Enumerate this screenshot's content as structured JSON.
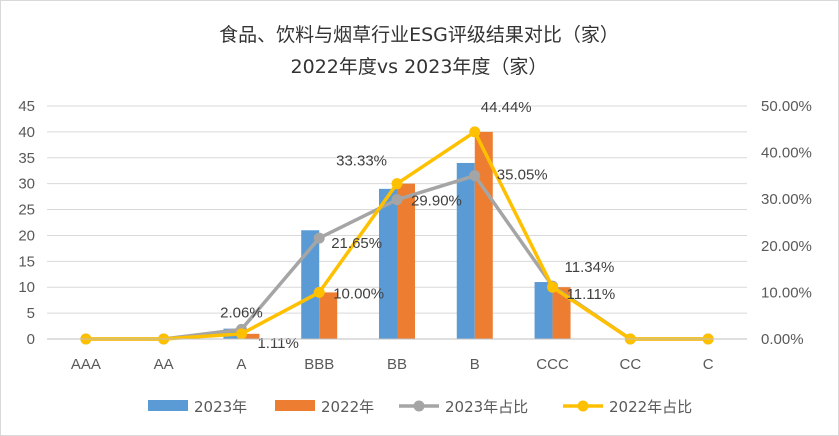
{
  "chart_data": {
    "type": "bar",
    "title": "食品、饮料与烟草行业ESG评级结果对比（家）",
    "subtitle": "2022年度vs 2023年度（家）",
    "categories": [
      "AAA",
      "AA",
      "A",
      "BBB",
      "BB",
      "B",
      "CCC",
      "CC",
      "C"
    ],
    "ylim": [
      0,
      45
    ],
    "yticks": [
      0,
      5,
      10,
      15,
      20,
      25,
      30,
      35,
      40,
      45
    ],
    "y2lim": [
      0,
      50
    ],
    "y2ticks": [
      "0.00%",
      "10.00%",
      "20.00%",
      "30.00%",
      "40.00%",
      "50.00%"
    ],
    "series": [
      {
        "name": "2023年",
        "type": "bar",
        "axis": "left",
        "color": "#5B9BD5",
        "values": [
          0,
          0,
          2,
          21,
          29,
          34,
          11,
          0,
          0
        ]
      },
      {
        "name": "2022年",
        "type": "bar",
        "axis": "left",
        "color": "#ED7D31",
        "values": [
          0,
          0,
          1,
          9,
          30,
          40,
          10,
          0,
          0
        ]
      },
      {
        "name": "2023年占比",
        "type": "line",
        "axis": "right",
        "color": "#A5A5A5",
        "values": [
          0,
          0,
          2.06,
          21.65,
          29.9,
          35.05,
          11.34,
          0,
          0
        ],
        "labels": [
          "",
          "",
          "2.06%",
          "21.65%",
          "29.90%",
          "35.05%",
          "11.34%",
          "",
          ""
        ]
      },
      {
        "name": "2022年占比",
        "type": "line",
        "axis": "right",
        "color": "#FFC000",
        "values": [
          0,
          0,
          1.11,
          10.0,
          33.33,
          44.44,
          11.11,
          0,
          0
        ],
        "labels": [
          "",
          "",
          "1.11%",
          "10.00%",
          "33.33%",
          "44.44%",
          "11.11%",
          "",
          ""
        ]
      }
    ],
    "grid": true,
    "legend_position": "bottom"
  }
}
